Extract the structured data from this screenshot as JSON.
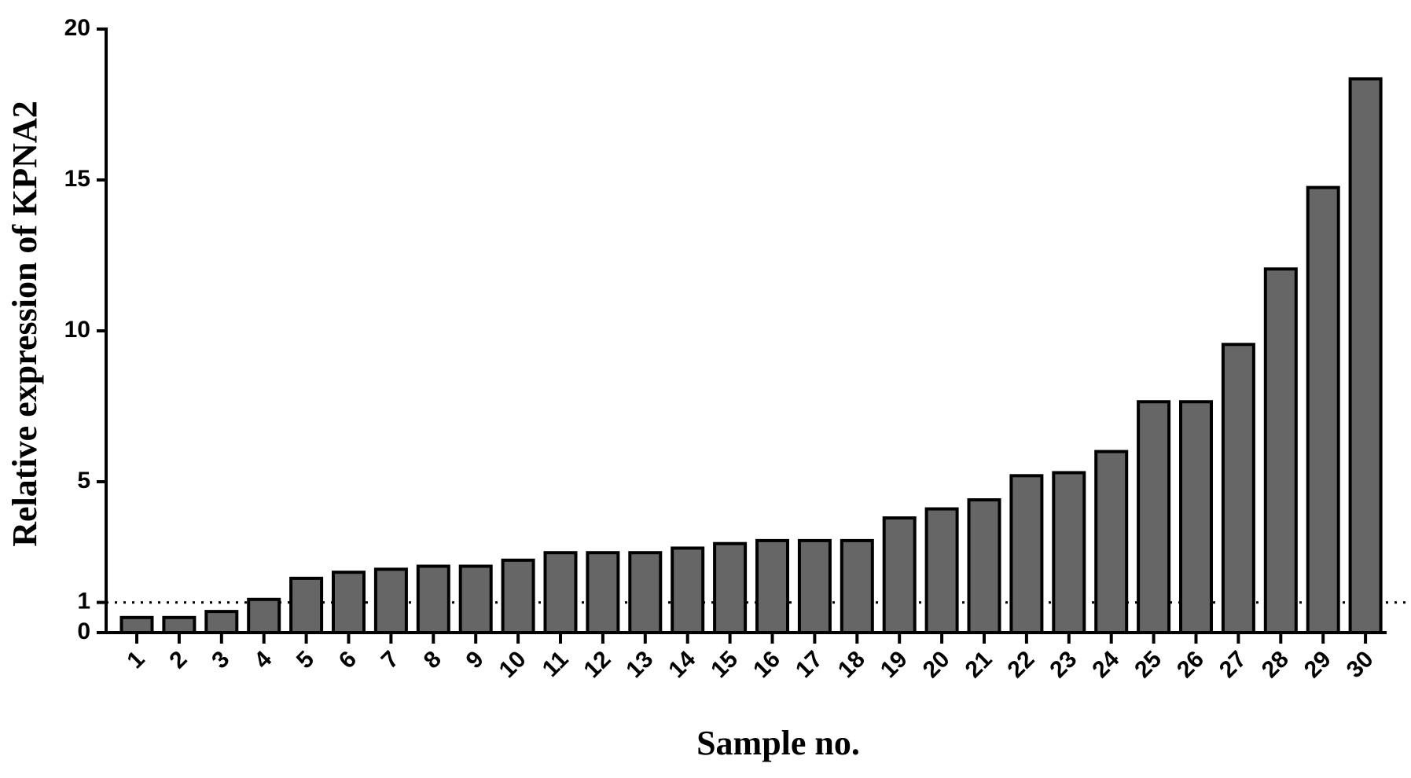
{
  "chart_data": {
    "type": "bar",
    "x_label": "Sample no.",
    "y_label": "Relative expression of KPNA2",
    "categories": [
      "1",
      "2",
      "3",
      "4",
      "5",
      "6",
      "7",
      "8",
      "9",
      "10",
      "11",
      "12",
      "13",
      "14",
      "15",
      "16",
      "17",
      "18",
      "19",
      "20",
      "21",
      "22",
      "23",
      "24",
      "25",
      "26",
      "27",
      "28",
      "29",
      "30"
    ],
    "values": [
      0.5,
      0.5,
      0.7,
      1.1,
      1.8,
      2.0,
      2.1,
      2.2,
      2.2,
      2.4,
      2.65,
      2.65,
      2.65,
      2.8,
      2.95,
      3.05,
      3.05,
      3.05,
      3.8,
      4.1,
      4.4,
      5.2,
      5.3,
      6.0,
      7.65,
      7.65,
      9.55,
      12.05,
      14.75,
      18.35
    ],
    "color": "#666666",
    "ylim": [
      0,
      20
    ],
    "yticks": [
      0,
      1,
      5,
      10,
      15,
      20
    ],
    "reference_line": 1,
    "grid": false
  }
}
